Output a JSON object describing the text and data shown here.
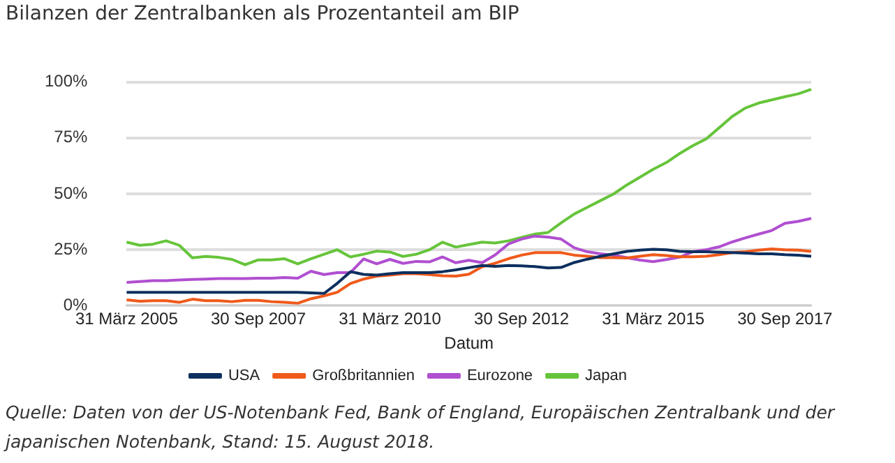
{
  "chart_data": {
    "type": "line",
    "title": "Bilanzen der Zentralbanken als Prozentanteil am BIP",
    "xlabel": "Datum",
    "categories": [
      "31 März 2005",
      null,
      null,
      null,
      null,
      null,
      null,
      null,
      null,
      null,
      "30 Sep 2007",
      null,
      null,
      null,
      null,
      null,
      null,
      null,
      null,
      null,
      "31 März 2010",
      null,
      null,
      null,
      null,
      null,
      null,
      null,
      null,
      null,
      "30 Sep 2012",
      null,
      null,
      null,
      null,
      null,
      null,
      null,
      null,
      null,
      "31 März 2015",
      null,
      null,
      null,
      null,
      null,
      null,
      null,
      null,
      null,
      "30 Sep 2017",
      null,
      null
    ],
    "series": [
      {
        "name": "USA",
        "color": "#0d2f5f",
        "values": [
          6,
          6,
          6,
          6,
          6,
          6,
          6,
          6,
          6,
          6,
          6,
          6,
          6,
          6,
          5.7,
          5.5,
          10,
          15.2,
          14,
          13.7,
          14.3,
          14.8,
          14.8,
          14.8,
          15.2,
          16,
          17,
          18,
          17.6,
          18,
          17.8,
          17.5,
          16.9,
          17.1,
          19.3,
          20.8,
          22.1,
          23.2,
          24.3,
          24.8,
          25.2,
          25,
          24.3,
          24.1,
          24.1,
          23.9,
          23.7,
          23.5,
          23.2,
          23.2,
          22.8,
          22.6,
          22.1
        ]
      },
      {
        "name": "Großbritannien",
        "color": "#f05a1a",
        "values": [
          2.6,
          2,
          2.2,
          2.2,
          1.5,
          2.9,
          2.2,
          2.2,
          1.8,
          2.4,
          2.4,
          1.8,
          1.5,
          1.1,
          3.1,
          4.4,
          6,
          9.9,
          11.9,
          13.2,
          13.7,
          14.3,
          14.3,
          13.9,
          13.4,
          13.2,
          14.1,
          17.4,
          19,
          21,
          22.6,
          23.7,
          23.7,
          23.7,
          22.6,
          22.1,
          21.5,
          21.5,
          21.3,
          22.1,
          22.8,
          22.4,
          21.9,
          21.9,
          22.1,
          22.8,
          23.7,
          24.1,
          24.8,
          25.4,
          25,
          24.8,
          24.3
        ]
      },
      {
        "name": "Eurozone",
        "color": "#b04fd0",
        "values": [
          10.4,
          10.8,
          11.2,
          11.2,
          11.5,
          11.7,
          11.9,
          12.1,
          12.1,
          12.1,
          12.3,
          12.3,
          12.6,
          12.3,
          15.4,
          13.9,
          14.8,
          14.8,
          20.9,
          18.7,
          20.7,
          18.9,
          19.8,
          19.6,
          21.8,
          19.2,
          20.3,
          19.2,
          22.7,
          27.6,
          29.8,
          31.1,
          30.7,
          29.8,
          25.9,
          24.1,
          23.2,
          22.6,
          21.5,
          20.4,
          19.7,
          20.6,
          21.7,
          24.1,
          25,
          26.3,
          28.5,
          30.3,
          32,
          33.6,
          36.8,
          37.7,
          39
        ]
      },
      {
        "name": "Japan",
        "color": "#66c43a",
        "values": [
          28.4,
          27,
          27.5,
          29,
          27,
          21.4,
          22,
          21.6,
          20.7,
          18.3,
          20.5,
          20.5,
          21,
          18.7,
          21,
          23,
          25,
          21.8,
          23,
          24.4,
          24,
          22,
          23,
          25,
          28.4,
          26.2,
          27.3,
          28.4,
          28,
          29,
          30.5,
          32,
          32.7,
          37,
          41,
          44,
          47,
          50,
          54,
          57.5,
          61,
          64,
          68,
          71.5,
          74.5,
          79.5,
          84.6,
          88.4,
          90.6,
          92,
          93.4,
          94.7,
          96.7
        ]
      }
    ],
    "ylim": [
      0,
      100
    ],
    "yticks": [
      {
        "value": 0,
        "label": "0%"
      },
      {
        "value": 25,
        "label": "25%"
      },
      {
        "value": 50,
        "label": "50%"
      },
      {
        "value": 75,
        "label": "75%"
      },
      {
        "value": 100,
        "label": "100%"
      }
    ],
    "grid": "y",
    "legend": "bottom",
    "marker": "none",
    "line_style": "solid",
    "annotations": [
      "Quelle: Daten von der US-Notenbank Fed, Bank of England, Europäischen Zentralbank und der japanischen Notenbank, Stand: 15. August 2018."
    ]
  }
}
